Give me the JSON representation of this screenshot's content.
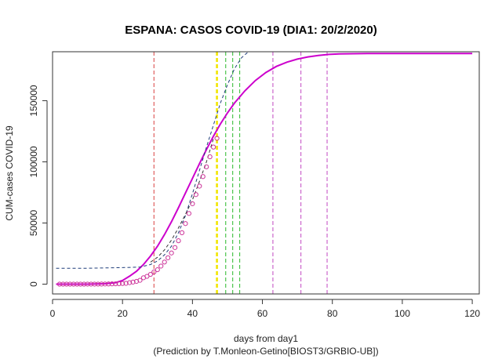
{
  "chart_data": {
    "type": "line",
    "title": "ESPANA: CASOS COVID-19 (DIA1: 20/2/2020)",
    "xlabel": "days from day1",
    "ylabel": "CUM-cases COVID-19",
    "caption": "(Prediction by T.Monleon-Getino[BIOST3/GRBIO-UB])",
    "xlim": [
      0,
      122
    ],
    "ylim": [
      -8000,
      190000
    ],
    "xticks": [
      0,
      20,
      40,
      60,
      80,
      100,
      120
    ],
    "yticks": [
      0,
      50000,
      100000,
      150000
    ],
    "grid": false,
    "observed_points": {
      "color": "#cc3399",
      "x": [
        2,
        3,
        4,
        5,
        6,
        7,
        8,
        9,
        10,
        11,
        12,
        13,
        14,
        15,
        16,
        17,
        18,
        19,
        20,
        21,
        22,
        23,
        24,
        25,
        26,
        27,
        28,
        29,
        30,
        31,
        32,
        33,
        34,
        35,
        36,
        37,
        38,
        39,
        40,
        41,
        42,
        43,
        44,
        45,
        46,
        47
      ],
      "y": [
        2,
        2,
        2,
        2,
        2,
        2,
        2,
        2,
        13,
        25,
        32,
        45,
        84,
        120,
        165,
        228,
        282,
        401,
        525,
        674,
        1231,
        1695,
        2277,
        3146,
        5232,
        6391,
        7988,
        9942,
        11826,
        14769,
        18077,
        21571,
        25496,
        29909,
        35480,
        42058,
        49515,
        57786,
        65719,
        73235,
        80110,
        87956,
        95923,
        104118,
        112065,
        119199
      ]
    },
    "series": [
      {
        "color": "#cc00cc",
        "x": [
          1,
          5,
          10,
          15,
          18,
          20,
          22,
          24,
          26,
          28,
          30,
          32,
          34,
          36,
          38,
          40,
          42,
          44,
          46,
          48,
          50,
          52,
          55,
          58,
          61,
          64,
          67,
          70,
          73,
          76,
          79,
          82,
          90,
          100,
          110,
          120
        ],
        "y": [
          0,
          0,
          0,
          300,
          1200,
          3000,
          6500,
          10500,
          16000,
          23000,
          31000,
          40500,
          51000,
          62500,
          74500,
          86500,
          98500,
          110000,
          121000,
          131000,
          140000,
          148000,
          158000,
          166500,
          173000,
          178000,
          181500,
          184000,
          185800,
          187000,
          187800,
          188200,
          188500,
          188600,
          188600,
          188600
        ]
      },
      {
        "color": "#1f3d7a",
        "x": [
          1,
          10,
          20,
          25,
          28,
          30,
          32,
          34,
          36,
          38,
          40,
          42,
          44,
          46,
          48,
          50,
          52,
          54,
          56
        ],
        "y": [
          13000,
          13000,
          13500,
          14000,
          16000,
          19000,
          24000,
          31000,
          42000,
          56000,
          74000,
          93000,
          112000,
          130000,
          148000,
          163000,
          176000,
          185000,
          190000
        ]
      },
      {
        "color": "#333333",
        "x": [
          28,
          30,
          32,
          34,
          36,
          38,
          40,
          42,
          44,
          46
        ],
        "y": [
          18000,
          22000,
          28000,
          36000,
          46000,
          57000,
          69000,
          84000,
          100000,
          119000
        ]
      }
    ],
    "vlines": [
      {
        "x": 29,
        "color": "#e06060",
        "width": 1.2
      },
      {
        "x": 47,
        "color": "#f2e600",
        "width": 2.6
      },
      {
        "x": 49.5,
        "color": "#4cc44c",
        "width": 1.2
      },
      {
        "x": 51.5,
        "color": "#4cc44c",
        "width": 1.2
      },
      {
        "x": 53.5,
        "color": "#4cc44c",
        "width": 1.2
      },
      {
        "x": 63,
        "color": "#cc66cc",
        "width": 1.2
      },
      {
        "x": 71,
        "color": "#cc66cc",
        "width": 1.2
      },
      {
        "x": 78.5,
        "color": "#cc66cc",
        "width": 1.2
      }
    ]
  }
}
